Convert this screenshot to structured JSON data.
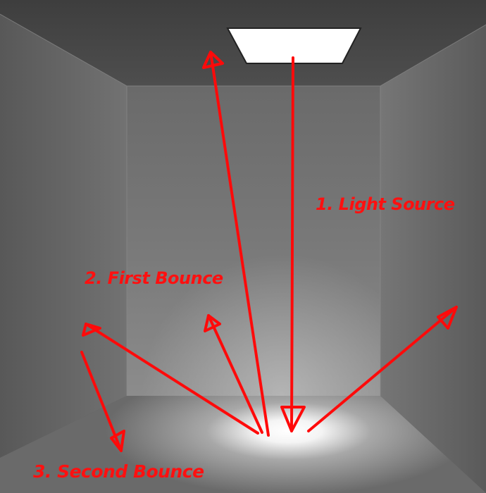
{
  "labels": {
    "light_source": "1. Light Source",
    "first_bounce": "2. First Bounce",
    "second_bounce": "3. Second Bounce"
  },
  "colors": {
    "arrow": "#ff0a0a",
    "label": "#ff1010",
    "ceiling": "#484848",
    "back_wall": "#7a7a7a",
    "side_wall": "#6a6a6a",
    "floor": "#6e6e6e",
    "light_panel": "#ffffff"
  }
}
